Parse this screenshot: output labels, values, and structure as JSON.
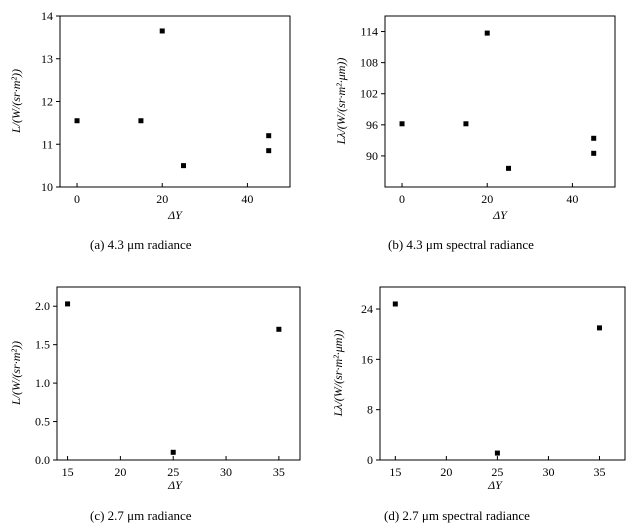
{
  "chart_data": [
    {
      "type": "scatter",
      "panel": "a",
      "caption": "(a) 4.3 μm radiance",
      "xlabel": "ΔY",
      "ylabel": "L/(W/(sr·m²))",
      "xlim": [
        -4,
        50
      ],
      "ylim": [
        10,
        14
      ],
      "xticks": [
        0,
        20,
        40
      ],
      "xtick_labels": [
        "0",
        "20",
        "40"
      ],
      "yticks": [
        10,
        11,
        12,
        13,
        14
      ],
      "ytick_labels": [
        "10",
        "11",
        "12",
        "13",
        "14"
      ],
      "points": [
        {
          "x": 0,
          "y": 11.55
        },
        {
          "x": 15,
          "y": 11.55
        },
        {
          "x": 20,
          "y": 13.65
        },
        {
          "x": 25,
          "y": 10.5
        },
        {
          "x": 45,
          "y": 11.2
        },
        {
          "x": 45,
          "y": 10.85
        }
      ],
      "marker": "square",
      "grid": false
    },
    {
      "type": "scatter",
      "panel": "b",
      "caption": "(b) 4.3 μm spectral radiance",
      "xlabel": "ΔY",
      "ylabel": "Lλ/(W/(sr·m²·μm))",
      "xlim": [
        -4,
        50
      ],
      "ylim": [
        84,
        117
      ],
      "xticks": [
        0,
        20,
        40
      ],
      "xtick_labels": [
        "0",
        "20",
        "40"
      ],
      "yticks": [
        90,
        96,
        102,
        108,
        114
      ],
      "ytick_labels": [
        "90",
        "96",
        "102",
        "108",
        "114"
      ],
      "points": [
        {
          "x": 0,
          "y": 96.2
        },
        {
          "x": 15,
          "y": 96.2
        },
        {
          "x": 20,
          "y": 113.7
        },
        {
          "x": 25,
          "y": 87.6
        },
        {
          "x": 45,
          "y": 93.4
        },
        {
          "x": 45,
          "y": 90.5
        }
      ],
      "marker": "square",
      "grid": false
    },
    {
      "type": "scatter",
      "panel": "c",
      "caption": "(c) 2.7 μm radiance",
      "xlabel": "ΔY",
      "ylabel": "L/(W/(sr·m²))",
      "xlim": [
        14,
        37
      ],
      "ylim": [
        0,
        2.25
      ],
      "xticks": [
        15,
        20,
        25,
        30,
        35
      ],
      "xtick_labels": [
        "15",
        "20",
        "25",
        "30",
        "35"
      ],
      "yticks": [
        0,
        0.5,
        1,
        1.5,
        2
      ],
      "ytick_labels": [
        "0.0",
        "0.5",
        "1.0",
        "1.5",
        "2.0"
      ],
      "points": [
        {
          "x": 15,
          "y": 2.03
        },
        {
          "x": 25,
          "y": 0.1
        },
        {
          "x": 35,
          "y": 1.7
        }
      ],
      "marker": "square",
      "grid": false
    },
    {
      "type": "scatter",
      "panel": "d",
      "caption": "(d) 2.7 μm spectral radiance",
      "xlabel": "ΔY",
      "ylabel": "Lλ/(W/(sr·m²·μm))",
      "xlim": [
        13.5,
        37.5
      ],
      "ylim": [
        0,
        27.5
      ],
      "xticks": [
        15,
        20,
        25,
        30,
        35
      ],
      "xtick_labels": [
        "15",
        "20",
        "25",
        "30",
        "35"
      ],
      "yticks": [
        0,
        8,
        16,
        24
      ],
      "ytick_labels": [
        "0",
        "8",
        "16",
        "24"
      ],
      "points": [
        {
          "x": 15,
          "y": 24.8
        },
        {
          "x": 25,
          "y": 1.1
        },
        {
          "x": 35,
          "y": 21.0
        }
      ],
      "marker": "square",
      "grid": false
    }
  ]
}
